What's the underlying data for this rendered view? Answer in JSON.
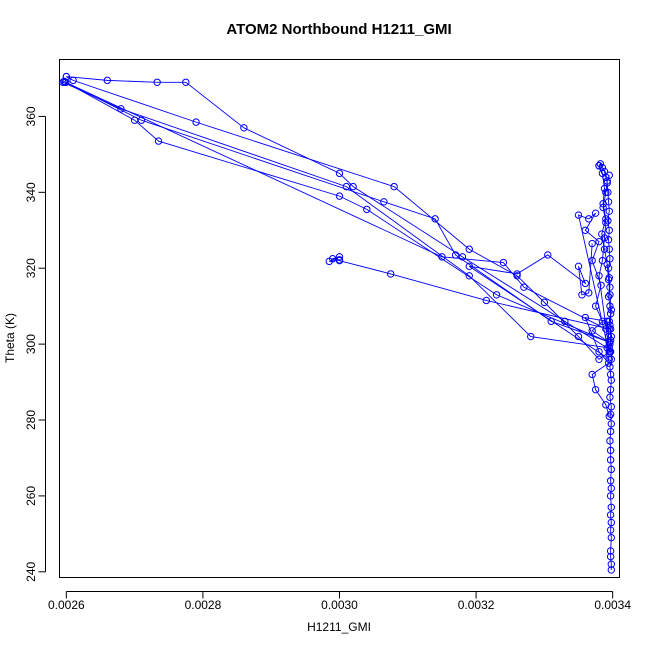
{
  "chart_data": {
    "type": "line",
    "title": "ATOM2 Northbound H1211_GMI",
    "xlabel": "H1211_GMI",
    "ylabel": "Theta (K)",
    "xlim": [
      0.00259,
      0.00341
    ],
    "ylim": [
      238.5,
      375
    ],
    "x_ticks": [
      0.0026,
      0.0028,
      0.003,
      0.0032,
      0.0034
    ],
    "x_tick_labels": [
      "0.0026",
      "0.0028",
      "0.0030",
      "0.0032",
      "0.0034"
    ],
    "y_ticks": [
      240,
      260,
      280,
      300,
      320,
      340,
      360
    ],
    "y_tick_labels": [
      "240",
      "260",
      "280",
      "300",
      "320",
      "340",
      "360"
    ],
    "grid": false,
    "legend": "none",
    "color": "#0000ff",
    "marker": "open-circle",
    "series": [
      {
        "values": [
          [
            0.003398,
            240.5
          ],
          [
            0.003398,
            242.0
          ],
          [
            0.003397,
            244.0
          ],
          [
            0.003397,
            245.5
          ],
          [
            0.003398,
            249.0
          ],
          [
            0.003397,
            251.0
          ],
          [
            0.003398,
            253.0
          ],
          [
            0.003397,
            255.0
          ],
          [
            0.003398,
            257.0
          ],
          [
            0.003397,
            260.0
          ],
          [
            0.003398,
            262.0
          ],
          [
            0.003397,
            264.0
          ],
          [
            0.003398,
            267.0
          ],
          [
            0.003397,
            269.5
          ],
          [
            0.003397,
            272.0
          ],
          [
            0.003396,
            274.5
          ],
          [
            0.003397,
            277.0
          ],
          [
            0.003398,
            279.0
          ],
          [
            0.003397,
            281.5
          ],
          [
            0.003398,
            283.5
          ],
          [
            0.003396,
            286.0
          ],
          [
            0.003397,
            288.0
          ],
          [
            0.003398,
            290.5
          ],
          [
            0.003397,
            292.0
          ],
          [
            0.003396,
            294.0
          ],
          [
            0.003398,
            296.0
          ],
          [
            0.003397,
            298.0
          ],
          [
            0.003396,
            300.0
          ],
          [
            0.003398,
            302.0
          ],
          [
            0.003397,
            304.0
          ],
          [
            0.003395,
            306.0
          ],
          [
            0.003397,
            308.0
          ],
          [
            0.003396,
            310.0
          ],
          [
            0.003394,
            312.5
          ],
          [
            0.003396,
            315.0
          ],
          [
            0.003395,
            317.5
          ],
          [
            0.003394,
            320.0
          ],
          [
            0.003396,
            322.5
          ],
          [
            0.003395,
            325.0
          ],
          [
            0.003394,
            327.5
          ],
          [
            0.003395,
            330.0
          ],
          [
            0.003393,
            332.5
          ],
          [
            0.003395,
            335.0
          ],
          [
            0.003394,
            337.5
          ],
          [
            0.003393,
            340.0
          ],
          [
            0.003392,
            342.5
          ],
          [
            0.00339,
            344.0
          ],
          [
            0.003388,
            345.5
          ],
          [
            0.003385,
            346.5
          ],
          [
            0.003382,
            347.5
          ],
          [
            0.00338,
            347.0
          ]
        ]
      },
      {
        "values": [
          [
            0.00338,
            347.0
          ],
          [
            0.003385,
            345.0
          ],
          [
            0.003388,
            341.0
          ],
          [
            0.003386,
            337.0
          ],
          [
            0.00339,
            333.0
          ],
          [
            0.003384,
            329.0
          ],
          [
            0.003388,
            325.0
          ],
          [
            0.003392,
            321.0
          ],
          [
            0.003394,
            317.0
          ],
          [
            0.003396,
            313.0
          ],
          [
            0.003398,
            309.0
          ],
          [
            0.003396,
            305.0
          ],
          [
            0.003397,
            301.0
          ],
          [
            0.003396,
            298.0
          ],
          [
            0.00338,
            296.0
          ],
          [
            0.00335,
            302.0
          ],
          [
            0.0033,
            311.0
          ],
          [
            0.00326,
            318.0
          ],
          [
            0.00319,
            325.0
          ],
          [
            0.00308,
            341.5
          ],
          [
            0.00279,
            358.5
          ],
          [
            0.00261,
            369.5
          ],
          [
            0.0026,
            370.5
          ]
        ]
      },
      {
        "values": [
          [
            0.0026,
            370.5
          ],
          [
            0.00266,
            369.5
          ],
          [
            0.002733,
            369.0
          ],
          [
            0.002775,
            369.0
          ],
          [
            0.00286,
            357.0
          ],
          [
            0.003,
            345.0
          ],
          [
            0.00302,
            341.5
          ],
          [
            0.00318,
            323.0
          ],
          [
            0.00333,
            306.0
          ],
          [
            0.003392,
            299.0
          ],
          [
            0.003394,
            302.0
          ],
          [
            0.003392,
            306.0
          ]
        ]
      },
      {
        "values": [
          [
            0.003392,
            306.0
          ],
          [
            0.00336,
            307.0
          ],
          [
            0.00338,
            298.0
          ],
          [
            0.003394,
            295.0
          ],
          [
            0.00337,
            292.0
          ],
          [
            0.003375,
            288.0
          ],
          [
            0.00339,
            284.0
          ],
          [
            0.003395,
            281.0
          ]
        ]
      },
      {
        "values": [
          [
            0.003395,
            299.0
          ],
          [
            0.00328,
            302.0
          ],
          [
            0.00319,
            318.0
          ],
          [
            0.00301,
            341.5
          ],
          [
            0.00268,
            362.0
          ],
          [
            0.002595,
            369.0
          ],
          [
            0.002597,
            369.2
          ]
        ]
      },
      {
        "values": [
          [
            0.002597,
            369.2
          ],
          [
            0.0027,
            359.0
          ],
          [
            0.002735,
            353.5
          ],
          [
            0.003,
            339.0
          ],
          [
            0.00304,
            335.5
          ],
          [
            0.00323,
            313.0
          ],
          [
            0.003395,
            300.5
          ]
        ]
      },
      {
        "values": [
          [
            0.003395,
            300.5
          ],
          [
            0.00331,
            306.0
          ],
          [
            0.00317,
            323.5
          ],
          [
            0.00314,
            333.0
          ],
          [
            0.003065,
            337.5
          ],
          [
            0.00271,
            359.0
          ],
          [
            0.002599,
            369.0
          ]
        ]
      },
      {
        "values": [
          [
            0.002599,
            369.0
          ],
          [
            0.00315,
            323.0
          ],
          [
            0.00324,
            321.5
          ],
          [
            0.00327,
            315.0
          ],
          [
            0.00339,
            304.0
          ]
        ]
      },
      {
        "values": [
          [
            0.003395,
            304.0
          ],
          [
            0.003215,
            311.5
          ],
          [
            0.003075,
            318.5
          ],
          [
            0.003,
            322.0
          ],
          [
            0.00299,
            322.5
          ],
          [
            0.003,
            323.0
          ],
          [
            0.002985,
            321.8
          ],
          [
            0.003,
            322.2
          ]
        ]
      },
      {
        "values": [
          [
            0.003395,
            296.0
          ],
          [
            0.00319,
            320.5
          ],
          [
            0.00326,
            318.5
          ],
          [
            0.003305,
            323.5
          ],
          [
            0.00336,
            316.0
          ],
          [
            0.00335,
            320.5
          ],
          [
            0.003355,
            313.0
          ],
          [
            0.003365,
            313.5
          ],
          [
            0.00337,
            326.5
          ]
        ]
      },
      {
        "values": [
          [
            0.003395,
            297.5
          ],
          [
            0.00335,
            334.0
          ],
          [
            0.003365,
            333.0
          ],
          [
            0.003375,
            334.5
          ],
          [
            0.00336,
            330.0
          ],
          [
            0.00338,
            327.0
          ],
          [
            0.00337,
            322.0
          ],
          [
            0.003383,
            315.5
          ],
          [
            0.003375,
            310.0
          ],
          [
            0.003385,
            306.0
          ],
          [
            0.00337,
            303.5
          ],
          [
            0.003395,
            300.5
          ]
        ]
      },
      {
        "values": [
          [
            0.003395,
            298.0
          ],
          [
            0.00338,
            318.0
          ],
          [
            0.003385,
            322.0
          ],
          [
            0.003388,
            328.0
          ],
          [
            0.00339,
            332.0
          ],
          [
            0.003386,
            336.0
          ],
          [
            0.00339,
            340.0
          ],
          [
            0.003392,
            343.0
          ],
          [
            0.003395,
            344.5
          ]
        ]
      }
    ]
  }
}
